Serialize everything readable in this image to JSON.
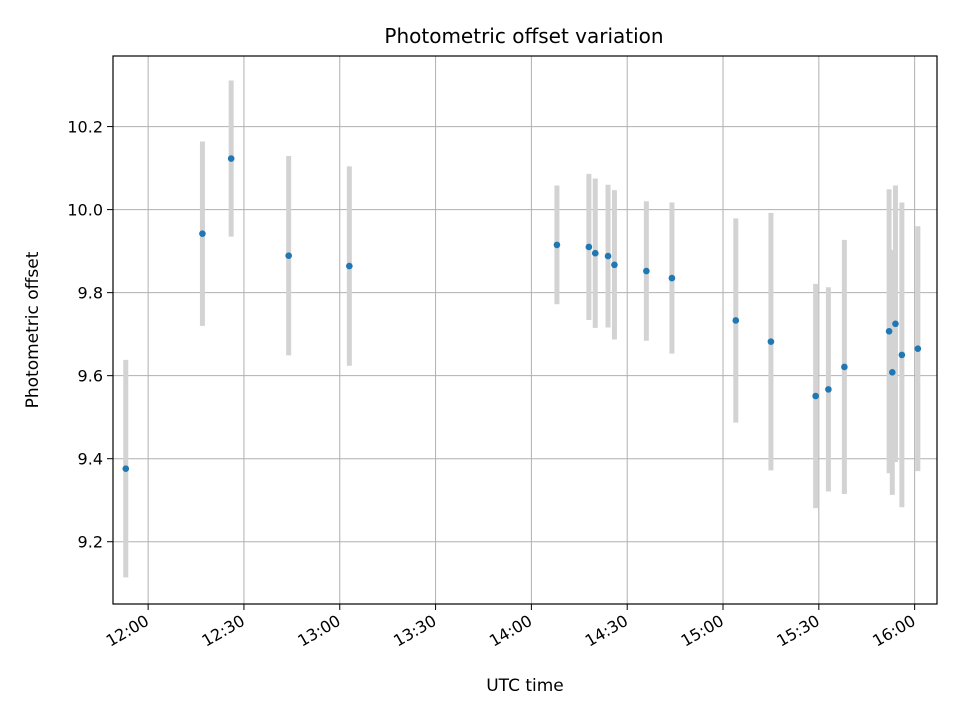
{
  "chart_data": {
    "type": "scatter",
    "title": "Photometric offset variation",
    "xlabel": "UTC time",
    "ylabel": "Photometric offset",
    "xlim": [
      "11:49",
      "16:07"
    ],
    "ylim": [
      9.05,
      10.37
    ],
    "x_ticks": [
      "12:00",
      "12:30",
      "13:00",
      "13:30",
      "14:00",
      "14:30",
      "15:00",
      "15:30",
      "16:00"
    ],
    "y_ticks": [
      9.2,
      9.4,
      9.6,
      9.8,
      10.0,
      10.2
    ],
    "grid": true,
    "colors": {
      "point": "#1f77b4",
      "error_bar": "#d3d3d3",
      "grid": "#b0b0b0"
    },
    "series": [
      {
        "points": [
          {
            "x": "11:53",
            "y": 9.376,
            "err": 0.262
          },
          {
            "x": "12:17",
            "y": 9.942,
            "err": 0.222
          },
          {
            "x": "12:26",
            "y": 10.123,
            "err": 0.188
          },
          {
            "x": "12:44",
            "y": 9.889,
            "err": 0.24
          },
          {
            "x": "13:03",
            "y": 9.864,
            "err": 0.24
          },
          {
            "x": "14:08",
            "y": 9.915,
            "err": 0.143
          },
          {
            "x": "14:18",
            "y": 9.91,
            "err": 0.176
          },
          {
            "x": "14:20",
            "y": 9.895,
            "err": 0.18
          },
          {
            "x": "14:24",
            "y": 9.888,
            "err": 0.172
          },
          {
            "x": "14:26",
            "y": 9.867,
            "err": 0.18
          },
          {
            "x": "14:36",
            "y": 9.852,
            "err": 0.168
          },
          {
            "x": "14:44",
            "y": 9.835,
            "err": 0.182
          },
          {
            "x": "15:04",
            "y": 9.733,
            "err": 0.246
          },
          {
            "x": "15:15",
            "y": 9.682,
            "err": 0.31
          },
          {
            "x": "15:29",
            "y": 9.551,
            "err": 0.27
          },
          {
            "x": "15:33",
            "y": 9.567,
            "err": 0.246
          },
          {
            "x": "15:38",
            "y": 9.621,
            "err": 0.306
          },
          {
            "x": "15:52",
            "y": 9.707,
            "err": 0.342
          },
          {
            "x": "15:53",
            "y": 9.608,
            "err": 0.295
          },
          {
            "x": "15:54",
            "y": 9.725,
            "err": 0.333
          },
          {
            "x": "15:56",
            "y": 9.65,
            "err": 0.367
          },
          {
            "x": "16:01",
            "y": 9.665,
            "err": 0.295
          }
        ]
      }
    ]
  }
}
